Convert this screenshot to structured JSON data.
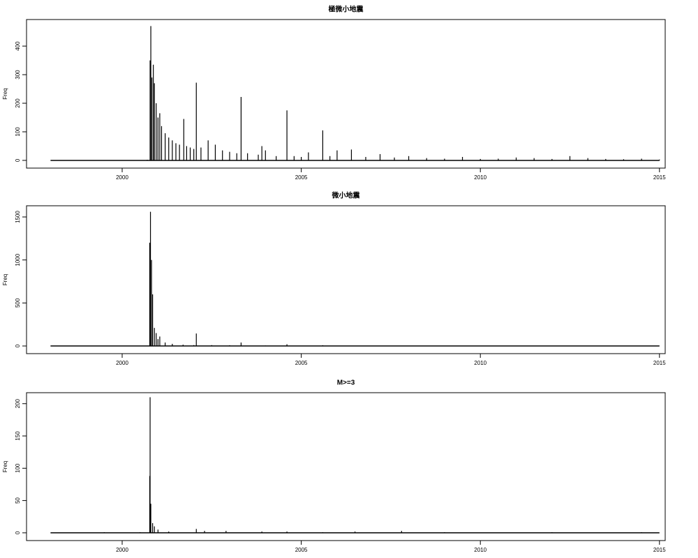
{
  "chart_data": [
    {
      "type": "spike",
      "title": "極微小地震",
      "y_label": "Freq",
      "x": [
        1998.0,
        1999.0,
        2000.0,
        2000.7,
        2000.78,
        2000.8,
        2000.83,
        2000.87,
        2000.9,
        2000.95,
        2001.0,
        2001.05,
        2001.1,
        2001.2,
        2001.3,
        2001.4,
        2001.5,
        2001.6,
        2001.72,
        2001.8,
        2001.9,
        2002.0,
        2002.07,
        2002.2,
        2002.4,
        2002.6,
        2002.8,
        2003.0,
        2003.2,
        2003.32,
        2003.5,
        2003.8,
        2003.9,
        2004.0,
        2004.3,
        2004.6,
        2004.8,
        2005.0,
        2005.2,
        2005.6,
        2005.8,
        2006.0,
        2006.4,
        2006.8,
        2007.2,
        2007.6,
        2008.0,
        2008.5,
        2009.0,
        2009.5,
        2010.0,
        2010.5,
        2011.0,
        2011.5,
        2012.0,
        2012.5,
        2013.0,
        2013.5,
        2014.0,
        2014.5,
        2015.0
      ],
      "values": [
        0,
        1,
        1,
        2,
        350,
        470,
        290,
        335,
        270,
        200,
        150,
        165,
        120,
        95,
        80,
        70,
        60,
        55,
        145,
        50,
        45,
        40,
        272,
        45,
        70,
        55,
        35,
        30,
        25,
        222,
        25,
        20,
        50,
        35,
        15,
        175,
        15,
        12,
        28,
        105,
        15,
        35,
        38,
        12,
        22,
        10,
        15,
        8,
        6,
        12,
        5,
        6,
        10,
        8,
        5,
        15,
        8,
        5,
        4,
        6,
        3
      ],
      "color": "#000000",
      "xlim": [
        1997.33,
        2015.16
      ],
      "xticks": [
        2000,
        2005,
        2010,
        2015
      ],
      "ylim": [
        -27,
        493
      ],
      "yticks": [
        0,
        100,
        200,
        300,
        400
      ]
    },
    {
      "type": "spike",
      "title": "微小地震",
      "y_label": "Freq",
      "x": [
        1998.0,
        1999.0,
        2000.0,
        2000.7,
        2000.77,
        2000.79,
        2000.82,
        2000.85,
        2000.9,
        2000.95,
        2001.0,
        2001.05,
        2001.2,
        2001.4,
        2001.7,
        2002.0,
        2002.07,
        2002.5,
        2003.0,
        2003.32,
        2004.0,
        2004.6,
        2005.6,
        2006.0,
        2008.0,
        2010.0,
        2012.0,
        2015.0
      ],
      "values": [
        0,
        1,
        2,
        3,
        1200,
        1560,
        1000,
        600,
        210,
        150,
        80,
        110,
        40,
        25,
        15,
        10,
        145,
        10,
        8,
        40,
        5,
        20,
        8,
        4,
        3,
        2,
        2,
        1
      ],
      "color": "#000000",
      "xlim": [
        1997.33,
        2015.16
      ],
      "xticks": [
        2000,
        2005,
        2010,
        2015
      ],
      "ylim": [
        -89,
        1630
      ],
      "yticks": [
        0,
        500,
        1000,
        1500
      ]
    },
    {
      "type": "spike",
      "title": "M>=3",
      "y_label": "Freq",
      "x": [
        1998.0,
        1999.5,
        2000.5,
        2000.77,
        2000.78,
        2000.8,
        2000.85,
        2000.9,
        2001.0,
        2001.3,
        2002.07,
        2002.3,
        2002.9,
        2003.9,
        2004.6,
        2005.6,
        2006.5,
        2007.8,
        2009.0,
        2012.0,
        2014.5,
        2015.0
      ],
      "values": [
        0,
        1,
        1,
        88,
        210,
        45,
        15,
        10,
        5,
        2,
        6,
        3,
        3,
        2,
        2,
        1,
        2,
        3,
        1,
        1,
        1,
        0
      ],
      "color": "#000000",
      "xlim": [
        1997.33,
        2015.16
      ],
      "xticks": [
        2000,
        2005,
        2010,
        2015
      ],
      "ylim": [
        -12,
        217
      ],
      "yticks": [
        0,
        50,
        100,
        150,
        200
      ]
    }
  ]
}
